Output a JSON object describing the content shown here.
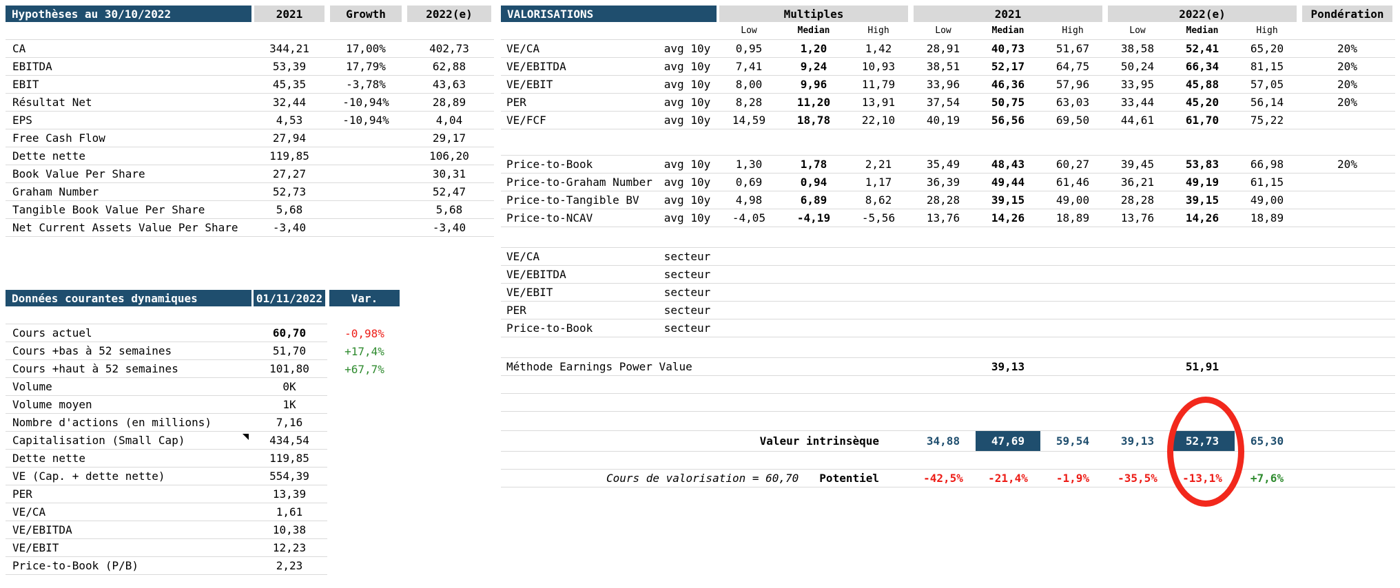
{
  "colors": {
    "header_blue": "#1F4E6E",
    "band_gray": "#D9D9D9",
    "gridline_gray": "#DADADA",
    "negative_red": "#ED1C16",
    "positive_green": "#2F8B2F",
    "intrinsic_blue": "#1F4E6E",
    "circle_red": "#F2281C"
  },
  "hypotheses": {
    "title": "Hypothèses au 30/10/2022",
    "columns": [
      "2021",
      "Growth",
      "2022(e)"
    ],
    "rows": [
      {
        "label": "CA",
        "v2021": "344,21",
        "growth": "17,00%",
        "v2022": "402,73"
      },
      {
        "label": "EBITDA",
        "v2021": "53,39",
        "growth": "17,79%",
        "v2022": "62,88"
      },
      {
        "label": "EBIT",
        "v2021": "45,35",
        "growth": "-3,78%",
        "v2022": "43,63"
      },
      {
        "label": "Résultat Net",
        "v2021": "32,44",
        "growth": "-10,94%",
        "v2022": "28,89"
      },
      {
        "label": "EPS",
        "v2021": "4,53",
        "growth": "-10,94%",
        "v2022": "4,04"
      },
      {
        "label": "Free Cash Flow",
        "v2021": "27,94",
        "growth": "",
        "v2022": "29,17"
      },
      {
        "label": "Dette nette",
        "v2021": "119,85",
        "growth": "",
        "v2022": "106,20"
      },
      {
        "label": "Book Value Per Share",
        "v2021": "27,27",
        "growth": "",
        "v2022": "30,31"
      },
      {
        "label": "Graham Number",
        "v2021": "52,73",
        "growth": "",
        "v2022": "52,47"
      },
      {
        "label": "Tangible Book Value Per Share",
        "v2021": "5,68",
        "growth": "",
        "v2022": "5,68"
      },
      {
        "label": "Net Current Assets Value Per Share",
        "v2021": "-3,40",
        "growth": "",
        "v2022": "-3,40"
      }
    ]
  },
  "donnees": {
    "title": "Données courantes dynamiques",
    "date_column": "01/11/2022",
    "var_column": "Var.",
    "rows": [
      {
        "label": "Cours actuel",
        "value": "60,70",
        "value_class": "bold",
        "var": "-0,98%",
        "var_class": "neg"
      },
      {
        "label": "Cours +bas à 52 semaines",
        "value": "51,70",
        "var": "+17,4%",
        "var_class": "pos"
      },
      {
        "label": "Cours +haut à 52 semaines",
        "value": "101,80",
        "var": "+67,7%",
        "var_class": "pos"
      },
      {
        "label": "Volume",
        "value": "0K",
        "var": ""
      },
      {
        "label": "Volume moyen",
        "value": "1K",
        "var": ""
      },
      {
        "label": "Nombre d'actions (en millions)",
        "value": "7,16",
        "var": ""
      },
      {
        "label": "Capitalisation (Small Cap)",
        "value": "434,54",
        "var": "",
        "comment_class": "has-comment"
      },
      {
        "label": "Dette nette",
        "value": "119,85",
        "var": ""
      },
      {
        "label": "VE (Cap. + dette nette)",
        "value": "554,39",
        "var": ""
      },
      {
        "label": "PER",
        "value": "13,39",
        "var": ""
      },
      {
        "label": "VE/CA",
        "value": "1,61",
        "var": ""
      },
      {
        "label": "VE/EBITDA",
        "value": "10,38",
        "var": ""
      },
      {
        "label": "VE/EBIT",
        "value": "12,23",
        "var": ""
      },
      {
        "label": "Price-to-Book (P/B)",
        "value": "2,23",
        "var": ""
      }
    ]
  },
  "valorisations": {
    "title": "VALORISATIONS",
    "group_headers": [
      "Multiples",
      "2021",
      "2022(e)"
    ],
    "ponderation_header": "Pondération",
    "subheaders": [
      "Low",
      "Median",
      "High"
    ],
    "multiple_rows": [
      {
        "label": "VE/CA",
        "method": "avg 10y",
        "values": [
          "0,95",
          "1,20",
          "1,42",
          "28,91",
          "40,73",
          "51,67",
          "38,58",
          "52,41",
          "65,20"
        ],
        "ponderation": "20%"
      },
      {
        "label": "VE/EBITDA",
        "method": "avg 10y",
        "values": [
          "7,41",
          "9,24",
          "10,93",
          "38,51",
          "52,17",
          "64,75",
          "50,24",
          "66,34",
          "81,15"
        ],
        "ponderation": "20%"
      },
      {
        "label": "VE/EBIT",
        "method": "avg 10y",
        "values": [
          "8,00",
          "9,96",
          "11,79",
          "33,96",
          "46,36",
          "57,96",
          "33,95",
          "45,88",
          "57,05"
        ],
        "ponderation": "20%"
      },
      {
        "label": "PER",
        "method": "avg 10y",
        "values": [
          "8,28",
          "11,20",
          "13,91",
          "37,54",
          "50,75",
          "63,03",
          "33,44",
          "45,20",
          "56,14"
        ],
        "ponderation": "20%"
      },
      {
        "label": "VE/FCF",
        "method": "avg 10y",
        "values": [
          "14,59",
          "18,78",
          "22,10",
          "40,19",
          "56,56",
          "69,50",
          "44,61",
          "61,70",
          "75,22"
        ],
        "ponderation": ""
      }
    ],
    "price_rows": [
      {
        "label": "Price-to-Book",
        "method": "avg 10y",
        "values": [
          "1,30",
          "1,78",
          "2,21",
          "35,49",
          "48,43",
          "60,27",
          "39,45",
          "53,83",
          "66,98"
        ],
        "ponderation": "20%"
      },
      {
        "label": "Price-to-Graham Number",
        "method": "avg 10y",
        "values": [
          "0,69",
          "0,94",
          "1,17",
          "36,39",
          "49,44",
          "61,46",
          "36,21",
          "49,19",
          "61,15"
        ],
        "ponderation": ""
      },
      {
        "label": "Price-to-Tangible BV",
        "method": "avg 10y",
        "values": [
          "4,98",
          "6,89",
          "8,62",
          "28,28",
          "39,15",
          "49,00",
          "28,28",
          "39,15",
          "49,00"
        ],
        "ponderation": ""
      },
      {
        "label": "Price-to-NCAV",
        "method": "avg 10y",
        "values": [
          "-4,05",
          "-4,19",
          "-5,56",
          "13,76",
          "14,26",
          "18,89",
          "13,76",
          "14,26",
          "18,89"
        ],
        "ponderation": ""
      }
    ],
    "secteur_rows": [
      {
        "label": "VE/CA",
        "method": "secteur"
      },
      {
        "label": "VE/EBITDA",
        "method": "secteur"
      },
      {
        "label": "VE/EBIT",
        "method": "secteur"
      },
      {
        "label": "PER",
        "method": "secteur"
      },
      {
        "label": "Price-to-Book",
        "method": "secteur"
      }
    ],
    "epv": {
      "label": "Méthode Earnings Power Value",
      "v2021_median": "39,13",
      "v2022_median": "51,91"
    },
    "intrinsic": {
      "label": "Valeur intrinsèque",
      "values": [
        {
          "v": "34,88",
          "cls": ""
        },
        {
          "v": "47,69",
          "cls": "hl"
        },
        {
          "v": "59,54",
          "cls": ""
        },
        {
          "v": "39,13",
          "cls": ""
        },
        {
          "v": "52,73",
          "cls": "hl"
        },
        {
          "v": "65,30",
          "cls": ""
        }
      ]
    },
    "potential": {
      "label_left": "Cours de valorisation = 60,70",
      "label": "Potentiel",
      "values": [
        {
          "v": "-42,5%",
          "cls": "neg"
        },
        {
          "v": "-21,4%",
          "cls": "neg"
        },
        {
          "v": "-1,9%",
          "cls": "neg"
        },
        {
          "v": "-35,5%",
          "cls": "neg"
        },
        {
          "v": "-13,1%",
          "cls": "neg"
        },
        {
          "v": "+7,6%",
          "cls": "pos"
        }
      ]
    }
  }
}
